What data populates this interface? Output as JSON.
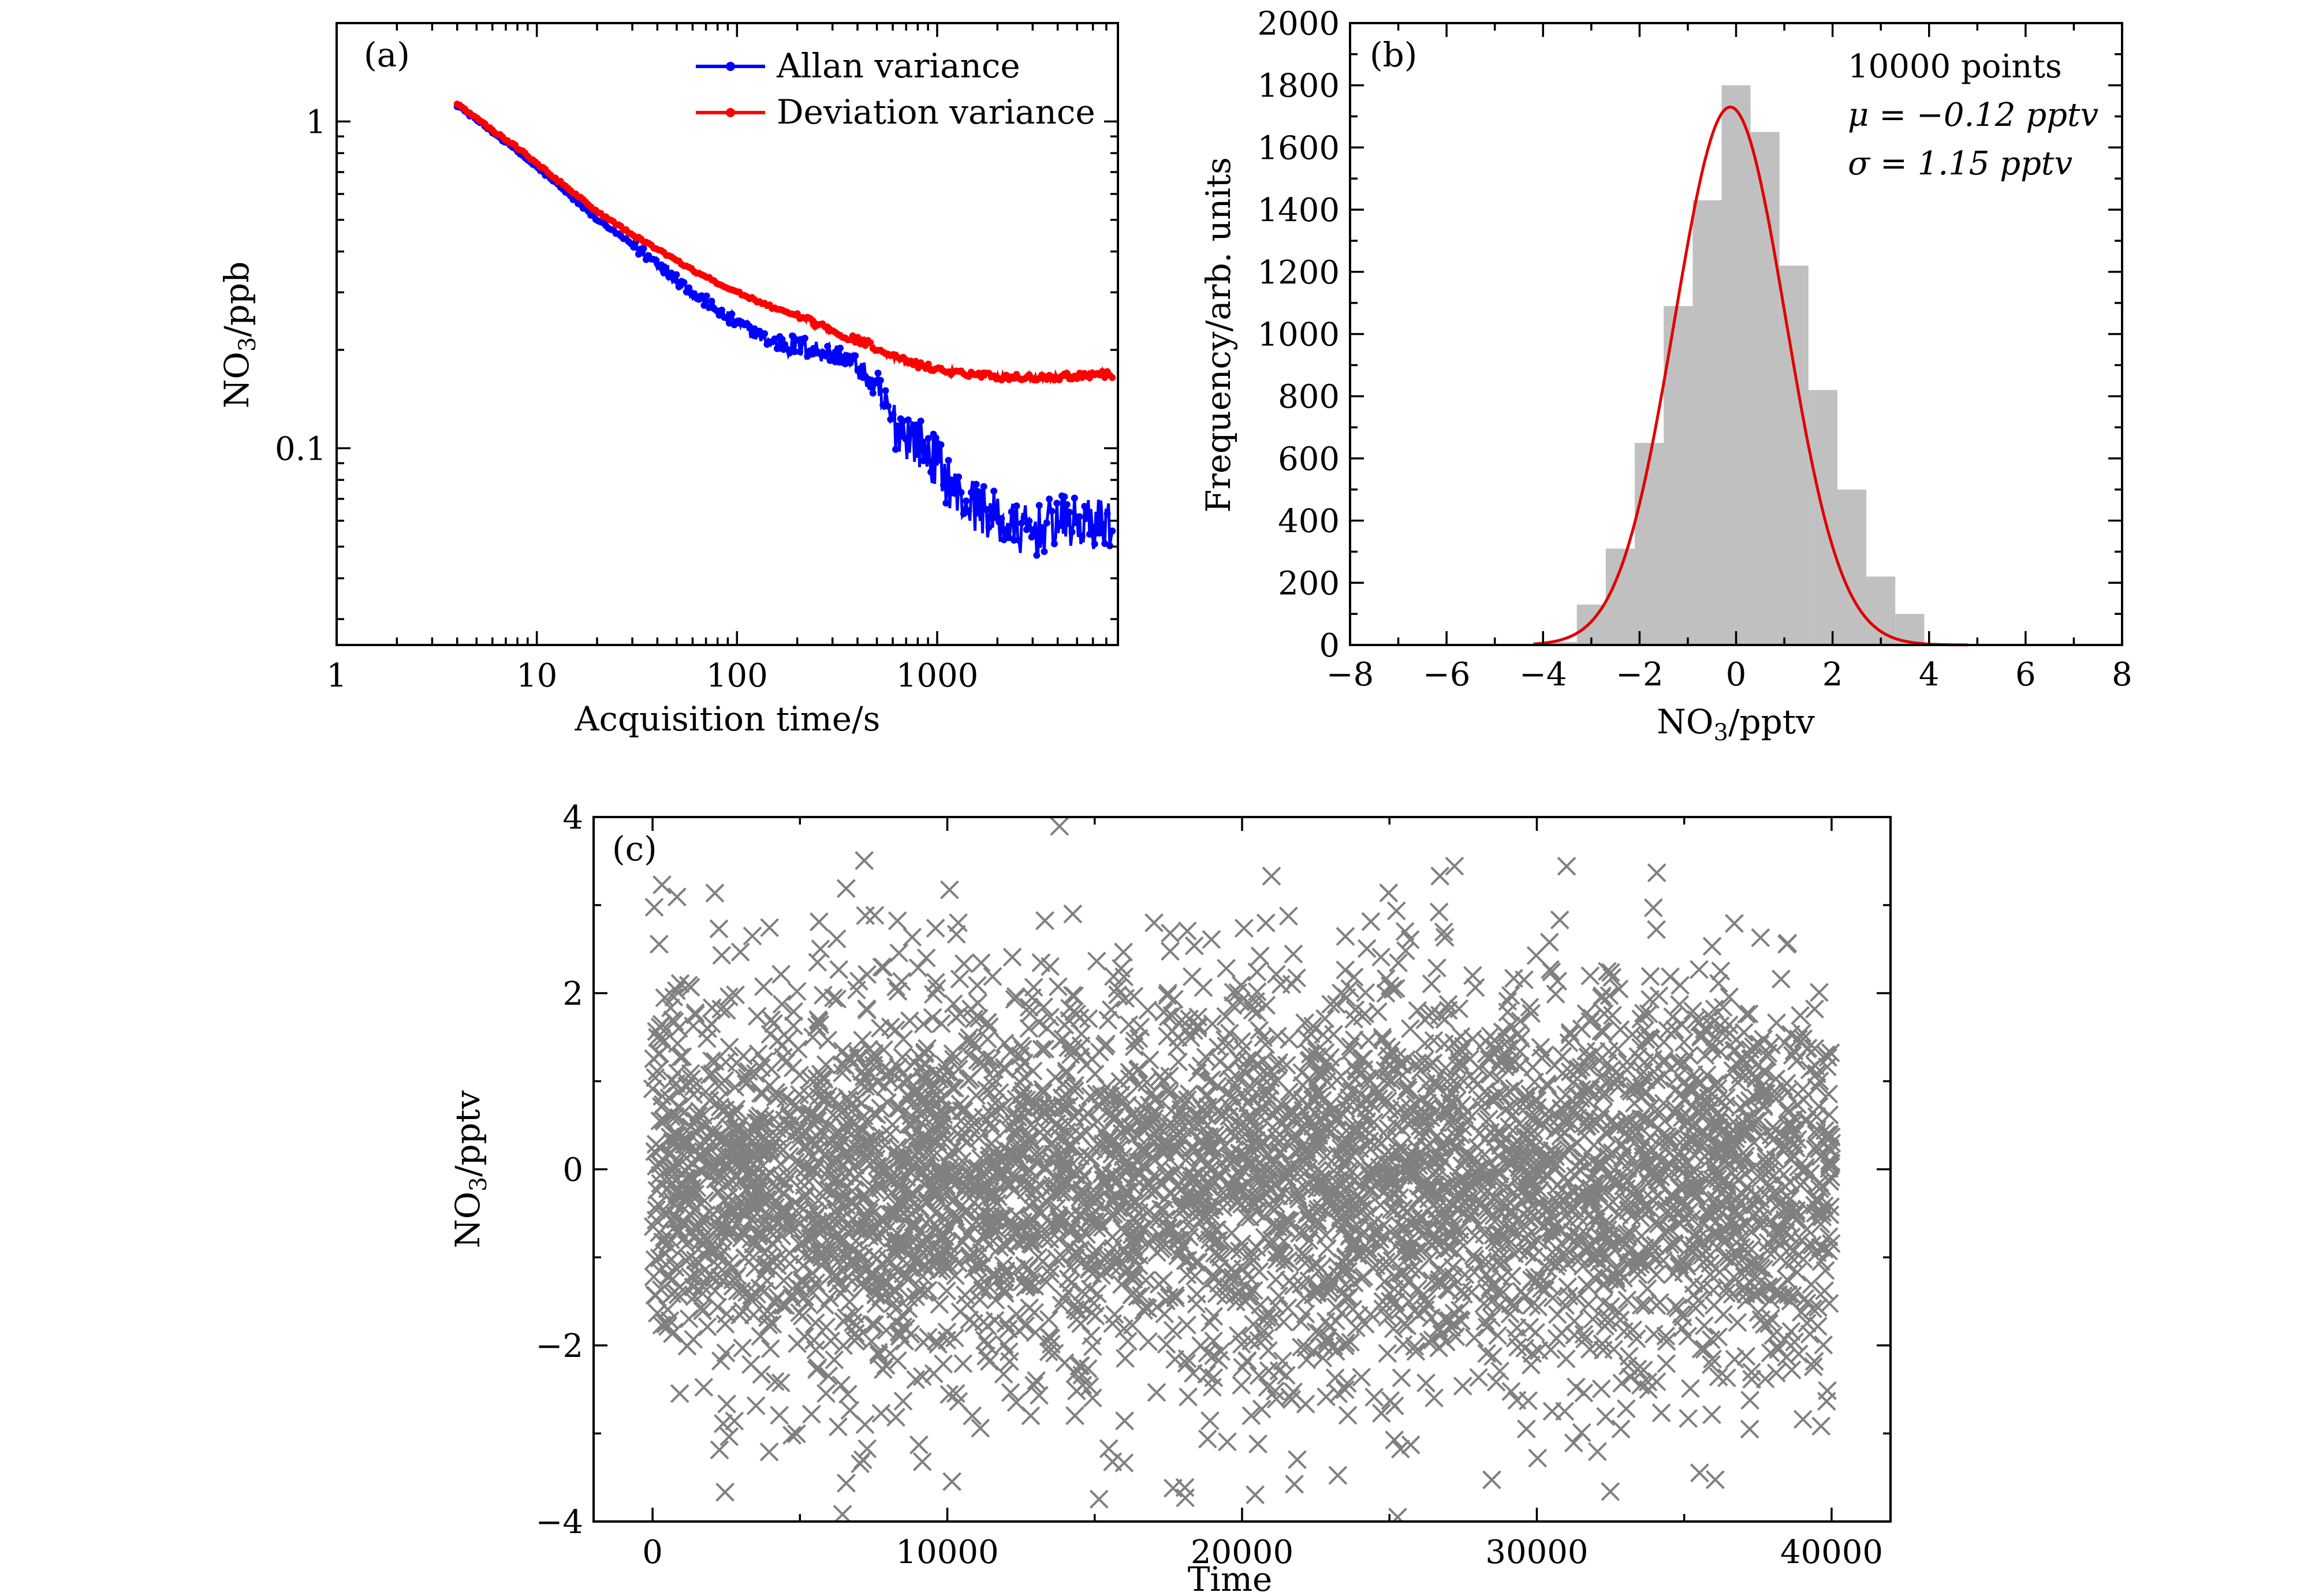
{
  "figure": {
    "colors": {
      "allan": "#0000ff",
      "deviation": "#ff0000",
      "hist_bar": "#c0c0c0",
      "gauss": "#e00000",
      "scatter": "#808080"
    }
  },
  "chart_data": [
    {
      "panel": "(a)",
      "type": "line",
      "xscale": "log",
      "yscale": "log",
      "xlabel": "Acquisition time/s",
      "ylabel_main": "NO",
      "ylabel_sub": "3",
      "ylabel_tail": "/ppb",
      "xlim": [
        1,
        8000
      ],
      "ylim": [
        0.025,
        2.0
      ],
      "x_ticks": [
        1,
        10,
        100,
        1000
      ],
      "x_tick_labels": [
        "1",
        "10",
        "100",
        "1000"
      ],
      "y_ticks": [
        0.1,
        1
      ],
      "y_tick_labels": [
        "0.1",
        "1"
      ],
      "legend_position": "top-right",
      "series": [
        {
          "name": "Allan variance",
          "x": [
            4,
            6,
            8,
            12,
            20,
            30,
            45,
            60,
            100,
            150,
            250,
            350,
            450,
            600,
            800,
            1000,
            1300,
            1700,
            2200,
            3000,
            4000,
            5500,
            7500
          ],
          "values": [
            1.12,
            0.93,
            0.81,
            0.66,
            0.5,
            0.42,
            0.35,
            0.3,
            0.24,
            0.21,
            0.2,
            0.19,
            0.165,
            0.12,
            0.105,
            0.09,
            0.07,
            0.065,
            0.058,
            0.055,
            0.06,
            0.058,
            0.06
          ]
        },
        {
          "name": "Deviation variance",
          "x": [
            4,
            6,
            8,
            12,
            20,
            30,
            45,
            60,
            100,
            150,
            250,
            350,
            450,
            600,
            800,
            1000,
            1300,
            1700,
            2200,
            3000,
            4000,
            5500,
            7500
          ],
          "values": [
            1.13,
            0.94,
            0.83,
            0.68,
            0.53,
            0.45,
            0.39,
            0.35,
            0.3,
            0.27,
            0.24,
            0.22,
            0.21,
            0.19,
            0.18,
            0.175,
            0.17,
            0.168,
            0.165,
            0.165,
            0.165,
            0.168,
            0.168
          ]
        }
      ]
    },
    {
      "panel": "(b)",
      "type": "bar",
      "xlabel_main": "NO",
      "xlabel_sub": "3",
      "xlabel_tail": "/pptv",
      "ylabel": "Frequency/arb. units",
      "xlim": [
        -8,
        8
      ],
      "ylim": [
        0,
        2000
      ],
      "x_ticks": [
        -8,
        -6,
        -4,
        -2,
        0,
        2,
        4,
        6,
        8
      ],
      "x_tick_labels": [
        "−8",
        "−6",
        "−4",
        "−2",
        "0",
        "2",
        "4",
        "6",
        "8"
      ],
      "y_ticks": [
        0,
        200,
        400,
        600,
        800,
        1000,
        1200,
        1400,
        1600,
        1800,
        2000
      ],
      "y_tick_labels": [
        "0",
        "200",
        "400",
        "600",
        "800",
        "1000",
        "1200",
        "1400",
        "1600",
        "1800",
        "2000"
      ],
      "bin_width": 0.6,
      "bin_centers": [
        -3.6,
        -3.0,
        -2.4,
        -1.8,
        -1.2,
        -0.6,
        0.0,
        0.6,
        1.2,
        1.8,
        2.4,
        3.0,
        3.6
      ],
      "values": [
        10,
        130,
        310,
        650,
        1090,
        1430,
        1800,
        1650,
        1220,
        820,
        500,
        220,
        100
      ],
      "fit": {
        "mu": -0.12,
        "sigma": 1.15,
        "peak": 1730,
        "x_range": [
          -4.2,
          4.8
        ]
      },
      "annotation_points": "10000 points",
      "annotation_mu": "μ = −0.12 pptv",
      "annotation_sigma": "σ = 1.15 pptv"
    },
    {
      "panel": "(c)",
      "type": "scatter",
      "marker": "x",
      "xlabel": "Time",
      "ylabel_main": "NO",
      "ylabel_sub": "3",
      "ylabel_tail": "/pptv",
      "xlim": [
        -2000,
        42000
      ],
      "ylim": [
        -4,
        4
      ],
      "x_ticks": [
        0,
        10000,
        20000,
        30000,
        40000
      ],
      "x_tick_labels": [
        "0",
        "10000",
        "20000",
        "30000",
        "40000"
      ],
      "y_ticks": [
        -4,
        -2,
        0,
        2,
        4
      ],
      "y_tick_labels": [
        "−4",
        "−2",
        "0",
        "2",
        "4"
      ],
      "x_range": [
        0,
        40000
      ],
      "mean": -0.12,
      "std": 1.15,
      "n_points": 10000
    }
  ]
}
